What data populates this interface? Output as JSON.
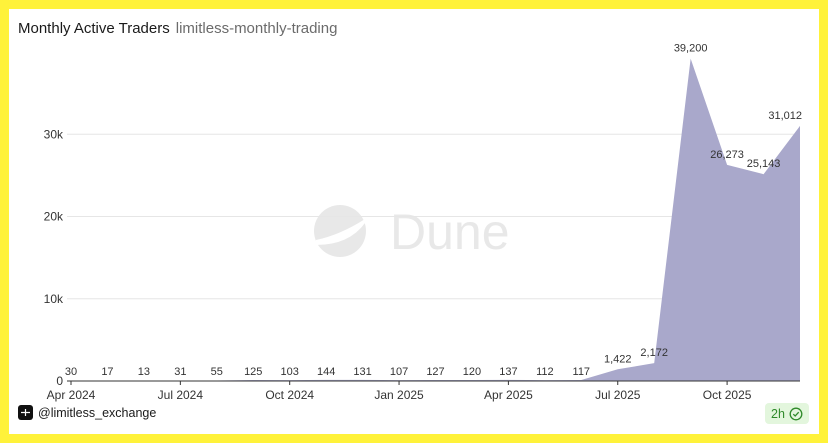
{
  "header": {
    "title": "Monthly Active Traders",
    "query_name": "limitless-monthly-trading"
  },
  "footer": {
    "author": "@limitless_exchange",
    "age": "2h"
  },
  "watermark": "Dune",
  "colors": {
    "area_fill": "#a9a8cb",
    "frame": "#fff23a",
    "badge_bg": "#e3f6dd",
    "badge_text": "#2f8a2a"
  },
  "chart_data": {
    "type": "area",
    "x": [
      "2024-04",
      "2024-05",
      "2024-06",
      "2024-07",
      "2024-08",
      "2024-09",
      "2024-10",
      "2024-11",
      "2024-12",
      "2025-01",
      "2025-02",
      "2025-03",
      "2025-04",
      "2025-05",
      "2025-06",
      "2025-07",
      "2025-08",
      "2025-09",
      "2025-10",
      "2025-11",
      "2025-12"
    ],
    "values": [
      30,
      17,
      13,
      31,
      55,
      125,
      103,
      144,
      131,
      107,
      127,
      120,
      137,
      112,
      117,
      1422,
      2172,
      39200,
      26273,
      25143,
      31012
    ],
    "data_labels": [
      "30",
      "17",
      "13",
      "31",
      "55",
      "125",
      "103",
      "144",
      "131",
      "107",
      "127",
      "120",
      "137",
      "112",
      "117",
      "1,422",
      "2,172",
      "39,200",
      "26,273",
      "25,143",
      "31,012"
    ],
    "x_tick_labels": [
      "Apr 2024",
      "Jul 2024",
      "Oct 2024",
      "Jan 2025",
      "Apr 2025",
      "Jul 2025",
      "Oct 2025"
    ],
    "x_tick_positions": [
      "2024-04",
      "2024-07",
      "2024-10",
      "2025-01",
      "2025-04",
      "2025-07",
      "2025-10"
    ],
    "y_tick_labels": [
      "0",
      "10k",
      "20k",
      "30k"
    ],
    "y_tick_values": [
      0,
      10000,
      20000,
      30000
    ],
    "ylim": [
      0,
      40000
    ],
    "title": "Monthly Active Traders",
    "xlabel": "",
    "ylabel": "",
    "grid": true,
    "legend": false
  }
}
